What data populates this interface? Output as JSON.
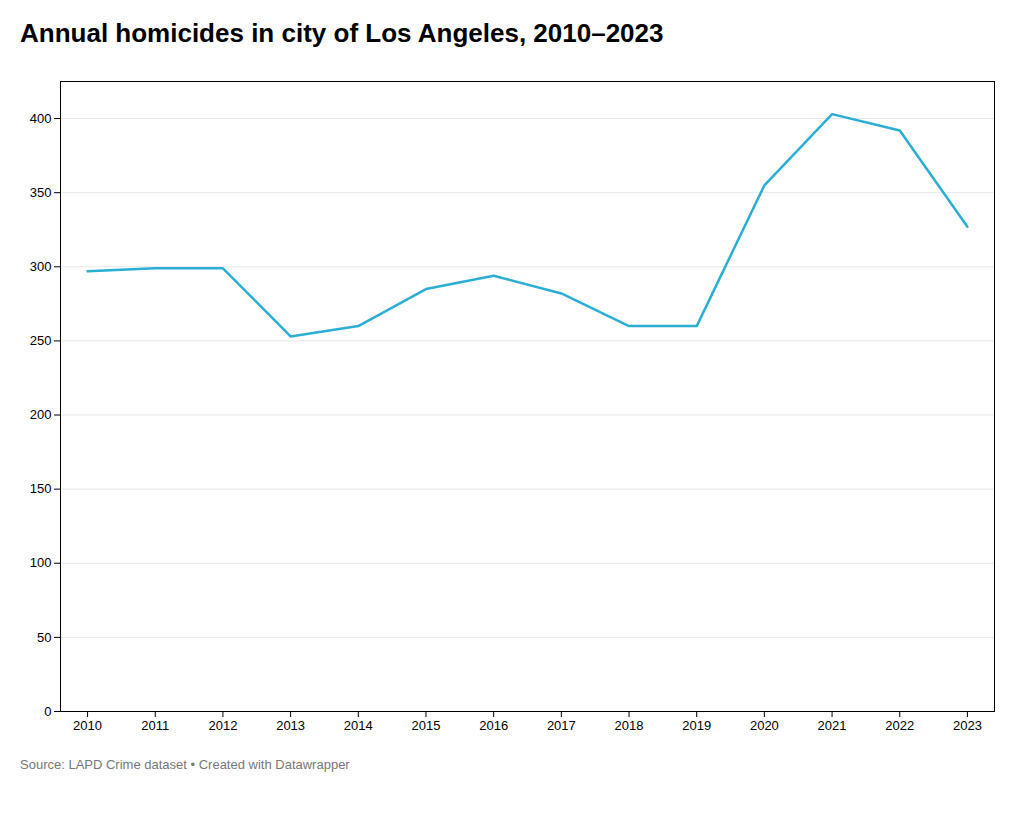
{
  "chart_data": {
    "type": "line",
    "title": "Annual homicides in city of Los Angeles, 2010–2023",
    "source": "Source: LAPD Crime dataset • Created with Datawrapper",
    "x": [
      2010,
      2011,
      2012,
      2013,
      2014,
      2015,
      2016,
      2017,
      2018,
      2019,
      2020,
      2021,
      2022,
      2023
    ],
    "values": [
      297,
      299,
      299,
      253,
      260,
      285,
      294,
      282,
      260,
      260,
      355,
      403,
      392,
      327
    ],
    "color": "#2BAED4",
    "xlim": [
      2009.6,
      2023.4
    ],
    "xticks": [
      2010,
      2011,
      2012,
      2013,
      2014,
      2015,
      2016,
      2017,
      2018,
      2019,
      2020,
      2021,
      2022,
      2023
    ],
    "ylim": [
      0,
      425
    ],
    "yticks": [
      0,
      50,
      100,
      150,
      200,
      250,
      300,
      350,
      400
    ],
    "grid": true
  }
}
